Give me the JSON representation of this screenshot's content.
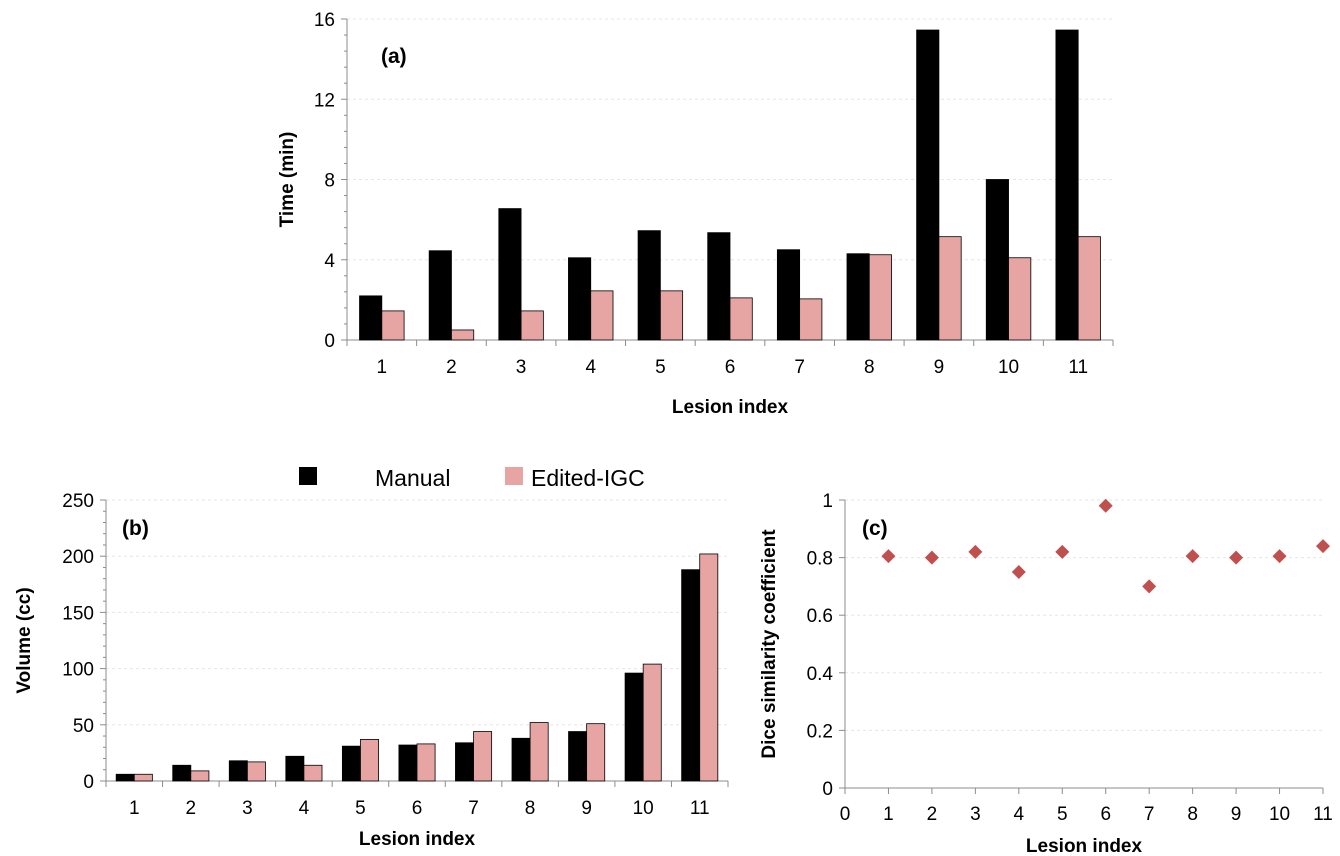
{
  "legend": {
    "items": [
      {
        "label": "Manual",
        "color": "#000000"
      },
      {
        "label": "Edited-IGC",
        "color": "#e6a4a2"
      }
    ]
  },
  "chart_data": [
    {
      "type": "bar",
      "panel_label": "(a)",
      "xlabel": "Lesion index",
      "ylabel": "Time (min)",
      "categories": [
        "1",
        "2",
        "3",
        "4",
        "5",
        "6",
        "7",
        "8",
        "9",
        "10",
        "11"
      ],
      "ylim": [
        0,
        16
      ],
      "yticks": [
        0,
        4,
        8,
        12,
        16
      ],
      "series": [
        {
          "name": "Manual",
          "color": "#000000",
          "values": [
            2.2,
            4.45,
            6.55,
            4.1,
            5.45,
            5.35,
            4.5,
            4.3,
            15.45,
            8.0,
            15.45
          ]
        },
        {
          "name": "Edited-IGC",
          "color": "#e6a4a2",
          "values": [
            1.45,
            0.5,
            1.45,
            2.45,
            2.45,
            2.1,
            2.05,
            4.25,
            5.15,
            4.1,
            5.15
          ]
        }
      ],
      "grid": true
    },
    {
      "type": "bar",
      "panel_label": "(b)",
      "xlabel": "Lesion index",
      "ylabel": "Volume (cc)",
      "categories": [
        "1",
        "2",
        "3",
        "4",
        "5",
        "6",
        "7",
        "8",
        "9",
        "10",
        "11"
      ],
      "ylim": [
        0,
        250
      ],
      "yticks": [
        0,
        50,
        100,
        150,
        200,
        250
      ],
      "series": [
        {
          "name": "Manual",
          "color": "#000000",
          "values": [
            6,
            14,
            18,
            22,
            31,
            32,
            34,
            38,
            44,
            96,
            188
          ]
        },
        {
          "name": "Edited-IGC",
          "color": "#e6a4a2",
          "values": [
            6,
            9,
            17,
            14,
            37,
            33,
            44,
            52,
            51,
            104,
            202
          ]
        }
      ],
      "legend_position": "top",
      "grid": true
    },
    {
      "type": "scatter",
      "panel_label": "(c)",
      "xlabel": "Lesion index",
      "ylabel": "Dice similarity coefficient",
      "xlim": [
        0,
        11
      ],
      "xticks": [
        0,
        1,
        2,
        3,
        4,
        5,
        6,
        7,
        8,
        9,
        10,
        11
      ],
      "ylim": [
        0,
        1
      ],
      "yticks": [
        "0",
        "0.2",
        "0.4",
        "0.6",
        "0.8",
        "1"
      ],
      "marker": "diamond",
      "color": "#c0504d",
      "x": [
        1,
        2,
        3,
        4,
        5,
        6,
        7,
        8,
        9,
        10,
        11
      ],
      "y": [
        0.805,
        0.8,
        0.82,
        0.75,
        0.82,
        0.98,
        0.7,
        0.805,
        0.8,
        0.805,
        0.84
      ],
      "grid": true
    }
  ]
}
